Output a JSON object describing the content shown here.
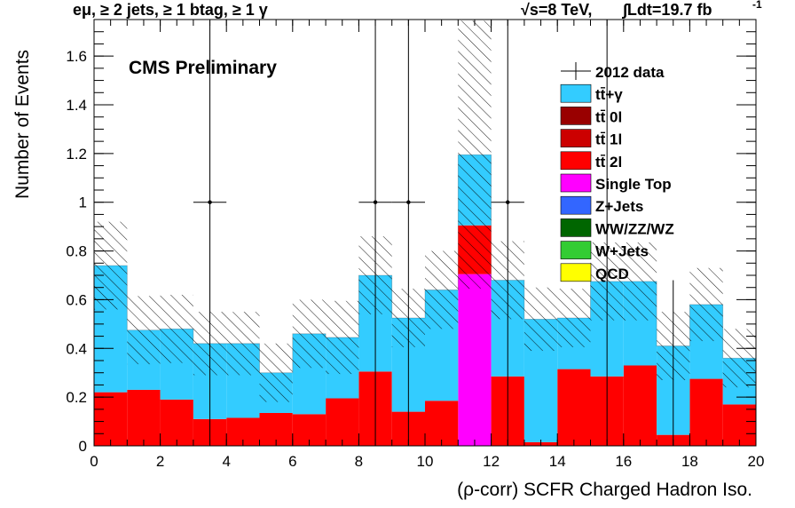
{
  "header": {
    "selection": "eμ, ≥ 2 jets, ≥ 1 btag, ≥ 1 γ",
    "energy": "√s=8 TeV,",
    "lumi": "∫Ldt=19.7 fb",
    "lumi_exp": "-1"
  },
  "cms_label": "CMS Preliminary",
  "chart_data": {
    "type": "bar",
    "stacked": true,
    "xlabel": "(ρ-corr) SCFR Charged Hadron Iso.",
    "ylabel": "Number of Events",
    "xlim": [
      0,
      20
    ],
    "ylim": [
      0,
      1.75
    ],
    "x_ticks": [
      0,
      2,
      4,
      6,
      8,
      10,
      12,
      14,
      16,
      18,
      20
    ],
    "y_ticks": [
      0,
      0.2,
      0.4,
      0.6,
      0.8,
      1,
      1.2,
      1.4,
      1.6
    ],
    "bin_edges": [
      0,
      1,
      2,
      3,
      4,
      5,
      6,
      7,
      8,
      9,
      10,
      11,
      12,
      13,
      14,
      15,
      16,
      17,
      18,
      19,
      20
    ],
    "series": [
      {
        "name": "QCD",
        "color": "#ffff00",
        "values": [
          0,
          0,
          0,
          0,
          0,
          0,
          0,
          0,
          0,
          0,
          0,
          0,
          0,
          0,
          0,
          0,
          0,
          0,
          0,
          0
        ]
      },
      {
        "name": "W+Jets",
        "color": "#33cc33",
        "values": [
          0,
          0,
          0,
          0,
          0,
          0,
          0,
          0,
          0,
          0,
          0,
          0,
          0,
          0,
          0,
          0,
          0,
          0,
          0,
          0
        ]
      },
      {
        "name": "WW/ZZ/WZ",
        "color": "#006600",
        "values": [
          0,
          0,
          0,
          0,
          0,
          0,
          0,
          0,
          0,
          0,
          0,
          0,
          0,
          0,
          0,
          0,
          0,
          0,
          0,
          0
        ]
      },
      {
        "name": "Z+Jets",
        "color": "#3366ff",
        "values": [
          0,
          0,
          0,
          0,
          0,
          0,
          0,
          0,
          0,
          0,
          0,
          0,
          0,
          0,
          0,
          0,
          0,
          0,
          0,
          0
        ]
      },
      {
        "name": "Single Top",
        "color": "#ff00ff",
        "values": [
          0,
          0,
          0,
          0,
          0,
          0,
          0,
          0,
          0,
          0,
          0,
          0.705,
          0,
          0,
          0,
          0,
          0,
          0,
          0,
          0
        ]
      },
      {
        "name": "tt̄ 2l",
        "color": "#ff0000",
        "values": [
          0.22,
          0.23,
          0.19,
          0.11,
          0.115,
          0.135,
          0.13,
          0.195,
          0.305,
          0.14,
          0.185,
          0.2,
          0.285,
          0.015,
          0.315,
          0.285,
          0.33,
          0.045,
          0.275,
          0.17
        ]
      },
      {
        "name": "tt̄ 1l",
        "color": "#cc0000",
        "values": [
          0,
          0,
          0,
          0,
          0,
          0,
          0,
          0,
          0,
          0,
          0,
          0,
          0,
          0,
          0,
          0,
          0,
          0,
          0,
          0
        ]
      },
      {
        "name": "tt̄ 0l",
        "color": "#990000",
        "values": [
          0,
          0,
          0,
          0,
          0,
          0,
          0,
          0,
          0,
          0,
          0,
          0,
          0,
          0,
          0,
          0,
          0,
          0,
          0,
          0
        ]
      },
      {
        "name": "tt̄+γ",
        "color": "#33ccff",
        "values": [
          0.52,
          0.245,
          0.29,
          0.31,
          0.305,
          0.165,
          0.33,
          0.25,
          0.395,
          0.385,
          0.455,
          0.29,
          0.395,
          0.505,
          0.21,
          0.39,
          0.345,
          0.365,
          0.305,
          0.19
        ]
      }
    ],
    "total": [
      0.74,
      0.475,
      0.48,
      0.42,
      0.42,
      0.3,
      0.46,
      0.445,
      0.7,
      0.525,
      0.64,
      1.195,
      0.68,
      0.52,
      0.525,
      0.675,
      0.675,
      0.41,
      0.58,
      0.36
    ],
    "uncertainty": [
      0.18,
      0.14,
      0.14,
      0.13,
      0.13,
      0.12,
      0.14,
      0.15,
      0.16,
      0.12,
      0.16,
      0.55,
      0.16,
      0.13,
      0.12,
      0.16,
      0.16,
      0.14,
      0.15,
      0.12
    ],
    "data_points": [
      {
        "x": 3.5,
        "y": 1,
        "err_lo": 1,
        "err_hi": 1.75
      },
      {
        "x": 8.5,
        "y": 1,
        "err_lo": 1,
        "err_hi": 1.75
      },
      {
        "x": 9.5,
        "y": 1,
        "err_lo": 1,
        "err_hi": 1.75
      },
      {
        "x": 12.5,
        "y": 1,
        "err_lo": 1,
        "err_hi": 1.75
      },
      {
        "x": 15.5,
        "y": 0,
        "err_lo": 0,
        "err_hi": 1.75
      },
      {
        "x": 17.5,
        "y": 0,
        "err_lo": 0,
        "err_hi": 0.68
      }
    ],
    "legend_placement": "top-right",
    "legend": [
      {
        "label": "2012 data",
        "marker": "cross",
        "color": "#000000"
      },
      {
        "label": "tt̄+γ",
        "marker": "box",
        "color": "#33ccff"
      },
      {
        "label": "tt̄ 0l",
        "marker": "box",
        "color": "#990000"
      },
      {
        "label": "tt̄ 1l",
        "marker": "box",
        "color": "#cc0000"
      },
      {
        "label": "tt̄ 2l",
        "marker": "box",
        "color": "#ff0000"
      },
      {
        "label": "Single Top",
        "marker": "box",
        "color": "#ff00ff"
      },
      {
        "label": "Z+Jets",
        "marker": "box",
        "color": "#3366ff"
      },
      {
        "label": "WW/ZZ/WZ",
        "marker": "box",
        "color": "#006600"
      },
      {
        "label": "W+Jets",
        "marker": "box",
        "color": "#33cc33"
      },
      {
        "label": "QCD",
        "marker": "box",
        "color": "#ffff00"
      }
    ]
  }
}
